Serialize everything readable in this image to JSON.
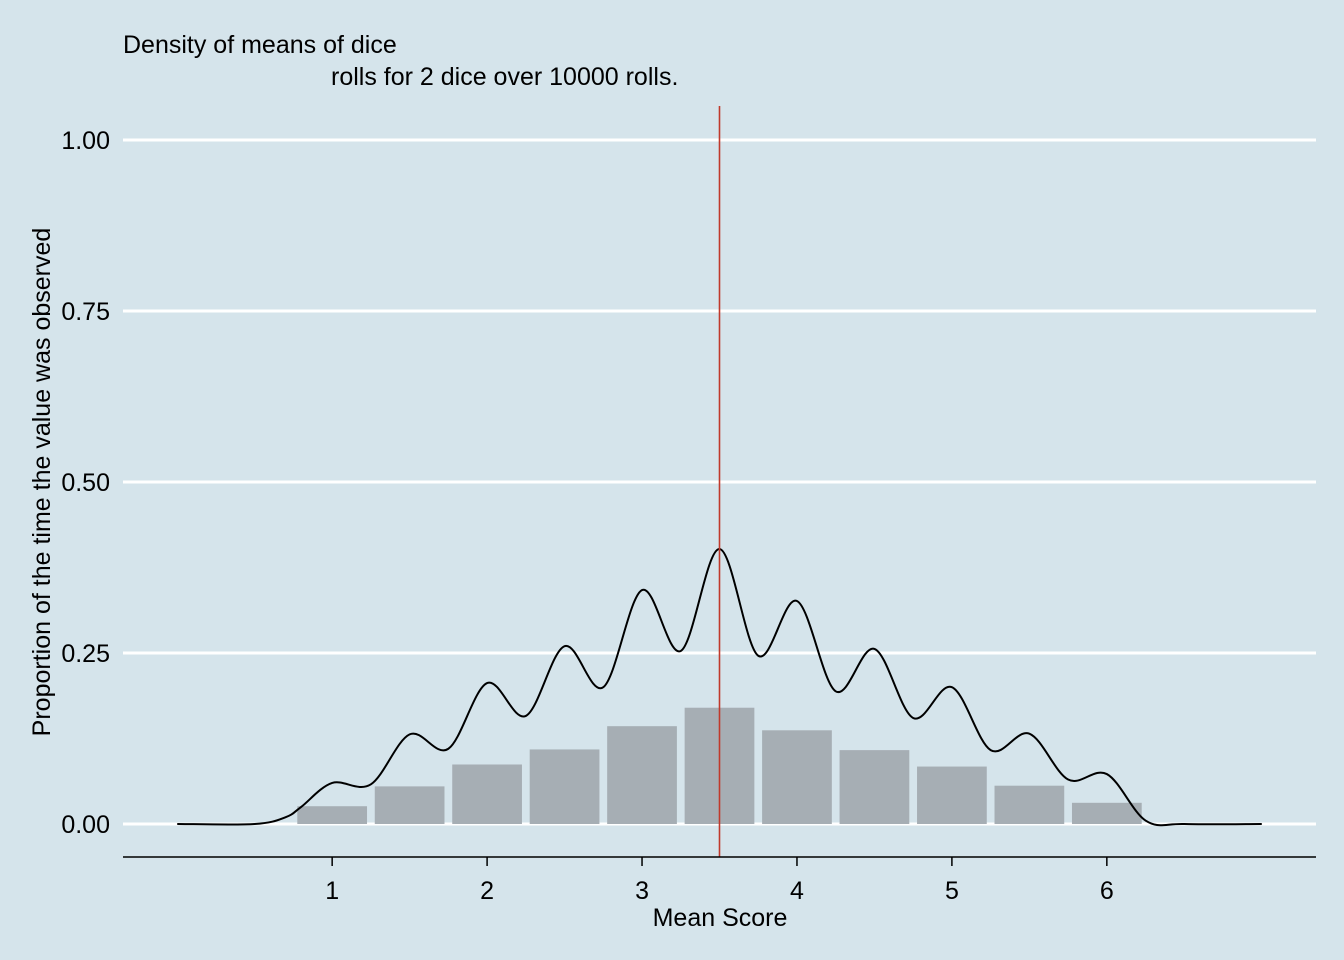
{
  "chart_data": {
    "type": "bar",
    "title_lines": [
      "Density of means of dice",
      "rolls for 2 dice over 10000 rolls."
    ],
    "xlabel": "Mean Score",
    "ylabel": "Proportion of the time the value was observed",
    "xlim": [
      -0.35,
      7.35
    ],
    "ylim": [
      0,
      1.0
    ],
    "x_ticks": [
      1,
      2,
      3,
      4,
      5,
      6
    ],
    "x_tick_labels": [
      "1",
      "2",
      "3",
      "4",
      "5",
      "6"
    ],
    "y_ticks": [
      0,
      0.25,
      0.5,
      0.75,
      1.0
    ],
    "y_tick_labels": [
      "0.00",
      "0.25",
      "0.50",
      "0.75",
      "1.00"
    ],
    "bar_width": 0.45,
    "bars": {
      "x": [
        1,
        1.5,
        2,
        2.5,
        3,
        3.5,
        4,
        4.5,
        5,
        5.5,
        6
      ],
      "values": [
        0.026,
        0.055,
        0.087,
        0.109,
        0.143,
        0.17,
        0.137,
        0.108,
        0.084,
        0.056,
        0.031
      ]
    },
    "density_curve": {
      "x": [
        0.0,
        0.5,
        0.7,
        0.8,
        1.0,
        1.25,
        1.5,
        1.75,
        2.0,
        2.25,
        2.5,
        2.75,
        3.0,
        3.25,
        3.5,
        3.75,
        4.0,
        4.25,
        4.5,
        4.75,
        5.0,
        5.25,
        5.5,
        5.75,
        6.0,
        6.25,
        6.5,
        7.0
      ],
      "values": [
        0.0,
        0.0,
        0.01,
        0.025,
        0.06,
        0.058,
        0.131,
        0.11,
        0.206,
        0.158,
        0.26,
        0.2,
        0.342,
        0.253,
        0.402,
        0.246,
        0.326,
        0.194,
        0.256,
        0.155,
        0.2,
        0.108,
        0.132,
        0.065,
        0.073,
        0.005,
        0.0,
        0.0
      ]
    },
    "mean_line": 3.5,
    "grid": "horizontal",
    "colors": {
      "background": "#d5e4eb",
      "bar": "#a6aeb4",
      "grid": "#ffffff",
      "curve": "#000000",
      "mean_line": "#c0392b",
      "axis": "#000000"
    }
  }
}
